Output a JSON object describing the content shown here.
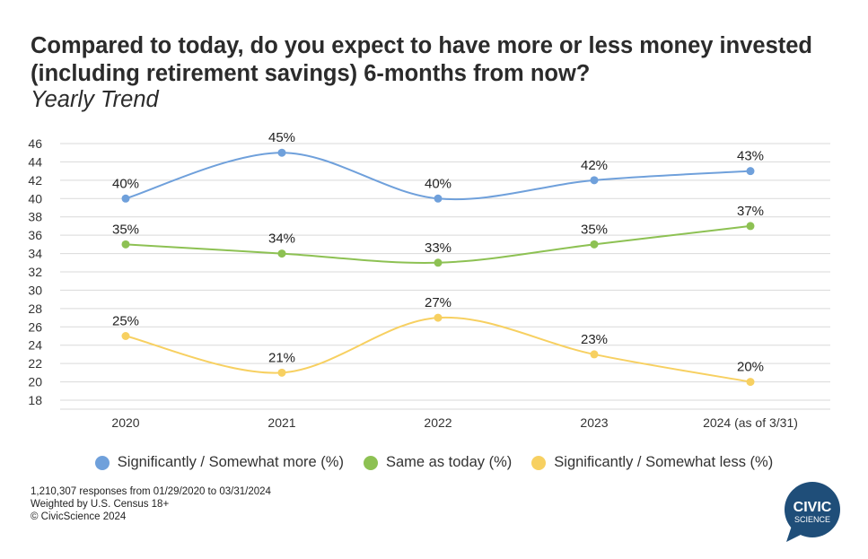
{
  "title": "Compared to today, do you expect to have more or less money invested (including retirement savings) 6-months from now?",
  "subtitle": "Yearly Trend",
  "footnotes": [
    "1,210,307 responses from 01/29/2020 to 03/31/2024",
    "Weighted by U.S. Census 18+",
    "© CivicScience 2024"
  ],
  "logo": {
    "line1": "CIVIC",
    "line2": "SCIENCE",
    "color": "#1f4e79"
  },
  "chart_data": {
    "type": "line",
    "title": "Compared to today, do you expect to have more or less money invested (including retirement savings) 6-months from now?",
    "subtitle": "Yearly Trend",
    "categories": [
      "2020",
      "2021",
      "2022",
      "2023",
      "2024 (as of 3/31)"
    ],
    "ylim": [
      18,
      46
    ],
    "yticks": [
      18,
      20,
      22,
      24,
      26,
      28,
      30,
      32,
      34,
      36,
      38,
      40,
      42,
      44,
      46
    ],
    "grid": true,
    "legend_position": "bottom",
    "series": [
      {
        "name": "Significantly / Somewhat more (%)",
        "color": "#6fa0db",
        "values": [
          40,
          45,
          40,
          42,
          43
        ],
        "labels": [
          "40%",
          "45%",
          "40%",
          "42%",
          "43%"
        ]
      },
      {
        "name": "Same as today (%)",
        "color": "#8dc153",
        "values": [
          35,
          34,
          33,
          35,
          37
        ],
        "labels": [
          "35%",
          "34%",
          "33%",
          "35%",
          "37%"
        ]
      },
      {
        "name": "Significantly / Somewhat less (%)",
        "color": "#f7d061",
        "values": [
          25,
          21,
          27,
          23,
          20
        ],
        "labels": [
          "25%",
          "21%",
          "27%",
          "23%",
          "20%"
        ]
      }
    ]
  }
}
